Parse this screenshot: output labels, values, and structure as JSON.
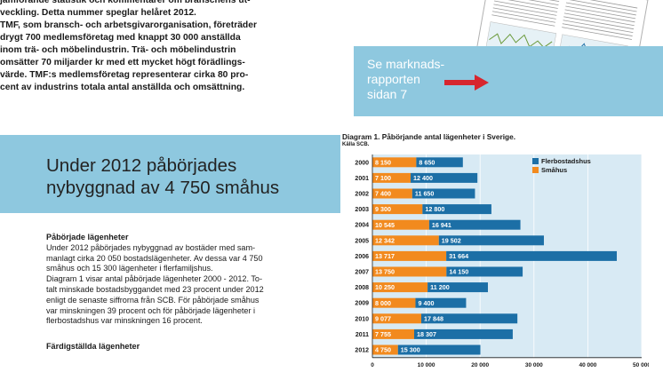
{
  "intro": {
    "paragraph1": "jämförande statistik och kommentarer om branschens ut-\nveckling. Detta nummer speglar helåret 2012.",
    "paragraph2": "TMF, som bransch- och arbetsgivarorganisation, företräder\ndrygt 700 medlemsföretag med knappt 30 000 anställda\ninom trä- och möbelindustrin. Trä- och möbelindustrin\nomsätter 70 miljarder kr med ett mycket högt förädlings-\nvärde. TMF:s medlemsföretag representerar cirka 80 pro-\ncent av industrins totala antal anställda och omsättning."
  },
  "market_report_box": {
    "text": "Se marknads-\nrapporten\nsidan 7"
  },
  "headline": "Under 2012 påbörjades\nnybyggnad av 4 750 småhus",
  "body": {
    "heading1": "Påbörjade lägenheter",
    "paragraph1": "Under 2012 påbörjades nybyggnad av bostäder med sam-\nmanlagt cirka 20 050 bostadslägenheter. Av dessa var 4 750\nsmåhus och 15 300 lägenheter i flerfamiljshus.",
    "paragraph2": "Diagram 1 visar antal påbörjade lägenheter 2000 - 2012. To-\ntalt minskade bostadsbyggandet med 23 procent under 2012\nenligt de senaste siffrorna från SCB. För påbörjade småhus\nvar minskningen 39 procent och för påbörjade lägenheter i\nflerbostadshus var minskningen 16 procent.",
    "heading2": "Färdigställda lägenheter"
  },
  "chart_data": {
    "type": "bar",
    "orientation": "horizontal",
    "stacked": true,
    "title": "Diagram 1. Påbörjande antal lägenheter i Sverige.",
    "subtitle": "Källa SCB.",
    "categories": [
      "2000",
      "2001",
      "2002",
      "2003",
      "2004",
      "2005",
      "2006",
      "2007",
      "2008",
      "2009",
      "2010",
      "2011",
      "2012"
    ],
    "series": [
      {
        "name": "Småhus",
        "color": "#f28a1e",
        "values": [
          8150,
          7100,
          7400,
          9300,
          10545,
          12342,
          13717,
          13750,
          10250,
          8000,
          9077,
          7755,
          4750
        ],
        "labels": [
          "8 150",
          "7 100",
          "7 400",
          "9 300",
          "10 545",
          "12 342",
          "13 717",
          "13 750",
          "10 250",
          "8 000",
          "9 077",
          "7 755",
          "4 750"
        ]
      },
      {
        "name": "Flerbostadshus",
        "color": "#1c6fa6",
        "values": [
          8650,
          12400,
          11650,
          12800,
          16941,
          19502,
          31664,
          14150,
          11200,
          9400,
          17848,
          18307,
          15300
        ],
        "labels": [
          "8 650",
          "12 400",
          "11 650",
          "12 800",
          "16 941",
          "19 502",
          "31 664",
          "14 150",
          "11 200",
          "9 400",
          "17 848",
          "18 307",
          "15 300"
        ]
      }
    ],
    "legend_order": [
      "Flerbostadshus",
      "Småhus"
    ],
    "xlim": [
      0,
      50000
    ],
    "xticks": [
      "0",
      "10 000",
      "20 000",
      "30 000",
      "40 000",
      "50 000"
    ],
    "legend_position": "top-right",
    "plot_background": "#d8eaf4"
  },
  "colors": {
    "accent_blue_box": "#8ec8df",
    "arrow": "#d7262e"
  }
}
